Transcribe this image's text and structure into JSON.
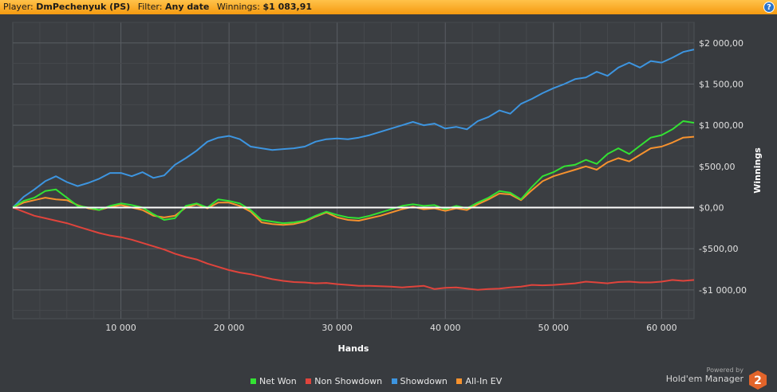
{
  "header": {
    "player_label": "Player:",
    "player_value": "DmPechenyuk (PS)",
    "filter_label": "Filter:",
    "filter_value": "Any date",
    "winnings_label": "Winnings:",
    "winnings_value": "$1 083,91",
    "help_icon": "question-icon"
  },
  "brand": {
    "powered_by": "Powered by",
    "name": "Hold'em Manager",
    "logo_digit": "2"
  },
  "colors": {
    "net_won": "#33e233",
    "non_showdown": "#e0443c",
    "showdown": "#3d95e0",
    "all_in_ev": "#f7922e",
    "zero_line": "#ffffff"
  },
  "chart_data": {
    "type": "line",
    "xlabel": "Hands",
    "ylabel": "Winnings",
    "xlim": [
      0,
      63000
    ],
    "ylim": [
      -1350,
      2250
    ],
    "x_ticks": [
      10000,
      20000,
      30000,
      40000,
      50000,
      60000
    ],
    "x_tick_labels": [
      "10 000",
      "20 000",
      "30 000",
      "40 000",
      "50 000",
      "60 000"
    ],
    "y_ticks": [
      2000,
      1500,
      1000,
      500,
      0,
      -500,
      -1000
    ],
    "y_tick_labels": [
      "$2 000,00",
      "$1 500,00",
      "$1 000,00",
      "$500,00",
      "$0,00",
      "-$500,00",
      "-$1 000,00"
    ],
    "grid": true,
    "legend_position": "bottom",
    "x": [
      0,
      1000,
      2000,
      3000,
      4000,
      5000,
      6000,
      7000,
      8000,
      9000,
      10000,
      11000,
      12000,
      13000,
      14000,
      15000,
      16000,
      17000,
      18000,
      19000,
      20000,
      21000,
      22000,
      23000,
      24000,
      25000,
      26000,
      27000,
      28000,
      29000,
      30000,
      31000,
      32000,
      33000,
      34000,
      35000,
      36000,
      37000,
      38000,
      39000,
      40000,
      41000,
      42000,
      43000,
      44000,
      45000,
      46000,
      47000,
      48000,
      49000,
      50000,
      51000,
      52000,
      53000,
      54000,
      55000,
      56000,
      57000,
      58000,
      59000,
      60000,
      61000,
      62000,
      63000
    ],
    "series": [
      {
        "name": "Net Won",
        "values": [
          0,
          80,
          120,
          200,
          220,
          120,
          20,
          0,
          -30,
          20,
          50,
          30,
          0,
          -80,
          -150,
          -130,
          20,
          50,
          0,
          100,
          80,
          50,
          -30,
          -150,
          -170,
          -190,
          -180,
          -160,
          -100,
          -50,
          -90,
          -120,
          -130,
          -100,
          -60,
          -20,
          20,
          40,
          20,
          30,
          -20,
          20,
          -10,
          60,
          120,
          200,
          180,
          100,
          250,
          380,
          430,
          500,
          520,
          580,
          530,
          650,
          720,
          650,
          750,
          850,
          880,
          950,
          1050,
          1030
        ]
      },
      {
        "name": "Non Showdown",
        "values": [
          0,
          -50,
          -100,
          -130,
          -160,
          -190,
          -230,
          -270,
          -310,
          -340,
          -360,
          -390,
          -430,
          -470,
          -510,
          -560,
          -600,
          -630,
          -680,
          -720,
          -760,
          -790,
          -810,
          -840,
          -870,
          -890,
          -905,
          -910,
          -920,
          -915,
          -930,
          -940,
          -950,
          -950,
          -955,
          -960,
          -970,
          -960,
          -950,
          -990,
          -975,
          -970,
          -985,
          -1000,
          -990,
          -985,
          -970,
          -960,
          -940,
          -945,
          -940,
          -930,
          -920,
          -900,
          -910,
          -920,
          -905,
          -900,
          -910,
          -910,
          -900,
          -880,
          -890,
          -880
        ]
      },
      {
        "name": "Showdown",
        "values": [
          0,
          130,
          220,
          320,
          380,
          310,
          260,
          300,
          350,
          420,
          420,
          380,
          430,
          360,
          390,
          520,
          600,
          690,
          800,
          850,
          870,
          830,
          740,
          720,
          700,
          710,
          720,
          740,
          800,
          830,
          840,
          830,
          850,
          880,
          920,
          960,
          1000,
          1040,
          1000,
          1020,
          960,
          980,
          950,
          1050,
          1100,
          1180,
          1140,
          1260,
          1320,
          1390,
          1450,
          1500,
          1560,
          1580,
          1650,
          1600,
          1700,
          1760,
          1700,
          1780,
          1760,
          1820,
          1890,
          1920
        ]
      },
      {
        "name": "All-In EV",
        "values": [
          0,
          60,
          90,
          120,
          100,
          90,
          30,
          -10,
          -30,
          10,
          30,
          0,
          -30,
          -100,
          -120,
          -100,
          0,
          40,
          -10,
          60,
          60,
          20,
          -50,
          -180,
          -200,
          -210,
          -200,
          -170,
          -110,
          -60,
          -120,
          -150,
          -160,
          -130,
          -100,
          -60,
          -20,
          10,
          -20,
          -10,
          -40,
          -10,
          -30,
          40,
          100,
          170,
          160,
          90,
          210,
          320,
          380,
          420,
          460,
          500,
          460,
          550,
          600,
          560,
          640,
          720,
          740,
          790,
          850,
          860
        ]
      }
    ]
  }
}
